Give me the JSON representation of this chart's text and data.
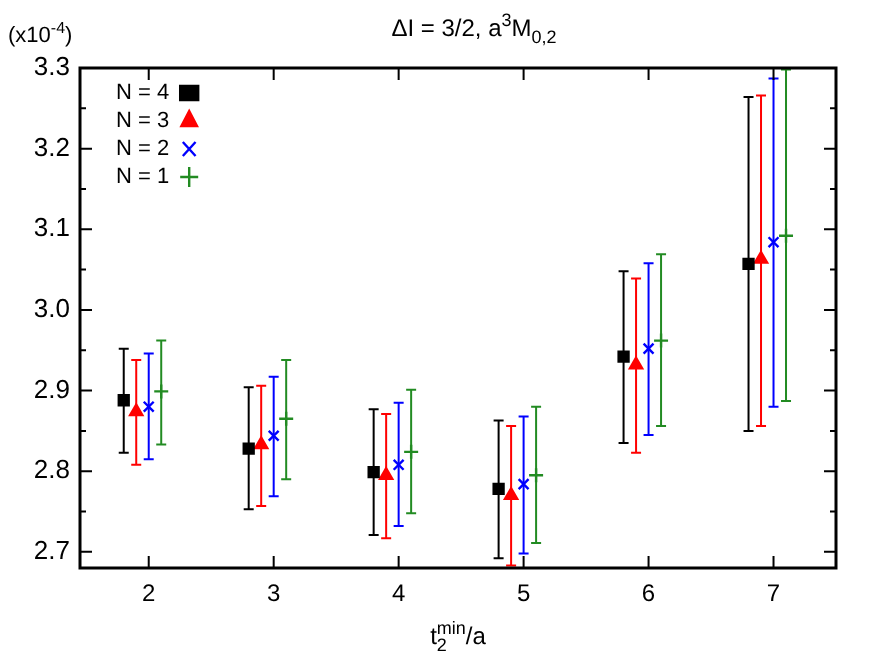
{
  "chart_data": {
    "type": "scatter",
    "title": "ΔI = 3/2, a$^{3}$M$_{0,2}$",
    "xlabel": "t$_{2}$$^{min}$/a",
    "annotations": [
      "(x10$^{-4}$)"
    ],
    "xlim": [
      1.45,
      7.5
    ],
    "xticks": [
      2,
      3,
      4,
      5,
      6,
      7
    ],
    "ylim": [
      2.68,
      3.3
    ],
    "yticks": [
      {
        "value": 2.7,
        "label": "2.7"
      },
      {
        "value": 2.75,
        "label": null
      },
      {
        "value": 2.8,
        "label": "2.8"
      },
      {
        "value": 2.85,
        "label": null
      },
      {
        "value": 2.9,
        "label": "2.9"
      },
      {
        "value": 2.95,
        "label": null
      },
      {
        "value": 3,
        "label": "3.0"
      },
      {
        "value": 3.05,
        "label": null
      },
      {
        "value": 3.1,
        "label": "3.1"
      },
      {
        "value": 3.15,
        "label": null
      },
      {
        "value": 3.2,
        "label": "3.2"
      },
      {
        "value": 3.25,
        "label": null
      },
      {
        "value": 3.3,
        "label": "3.3"
      }
    ],
    "grid": false,
    "legend": "top left",
    "series": [
      {
        "name": "N = 4",
        "color": "#000000",
        "marker": "square",
        "x": [
          1.8,
          2.8,
          3.8,
          4.8,
          5.8,
          6.8
        ],
        "values": [
          2.888,
          2.828,
          2.799,
          2.778,
          2.942,
          3.057
        ],
        "errors": [
          [
            2.823,
            2.952
          ],
          [
            2.753,
            2.904
          ],
          [
            2.721,
            2.877
          ],
          [
            2.692,
            2.863
          ],
          [
            2.835,
            3.048
          ],
          [
            2.85,
            3.264
          ]
        ]
      },
      {
        "name": "N = 3",
        "color": "#ff0000",
        "marker": "triangle",
        "x": [
          1.9,
          2.9,
          3.9,
          4.9,
          5.9,
          6.9
        ],
        "values": [
          2.874,
          2.833,
          2.795,
          2.77,
          2.932,
          3.063
        ],
        "errors": [
          [
            2.808,
            2.938
          ],
          [
            2.757,
            2.906
          ],
          [
            2.717,
            2.871
          ],
          [
            2.683,
            2.856
          ],
          [
            2.823,
            3.039
          ],
          [
            2.856,
            3.266
          ]
        ]
      },
      {
        "name": "N = 2",
        "color": "#0000ff",
        "marker": "cross",
        "x": [
          2,
          3,
          4,
          5,
          6,
          7
        ],
        "values": [
          2.88,
          2.844,
          2.808,
          2.784,
          2.952,
          3.084
        ],
        "errors": [
          [
            2.815,
            2.946
          ],
          [
            2.769,
            2.917
          ],
          [
            2.732,
            2.885
          ],
          [
            2.698,
            2.868
          ],
          [
            2.845,
            3.058
          ],
          [
            2.88,
            3.287
          ]
        ]
      },
      {
        "name": "N = 1",
        "color": "#228b22",
        "marker": "plus",
        "x": [
          2.1,
          3.1,
          4.1,
          5.1,
          6.1,
          7.1
        ],
        "values": [
          2.899,
          2.865,
          2.824,
          2.795,
          2.962,
          3.092
        ],
        "errors": [
          [
            2.833,
            2.962
          ],
          [
            2.79,
            2.938
          ],
          [
            2.748,
            2.901
          ],
          [
            2.711,
            2.88
          ],
          [
            2.856,
            3.069
          ],
          [
            2.887,
            3.298
          ]
        ]
      }
    ]
  }
}
